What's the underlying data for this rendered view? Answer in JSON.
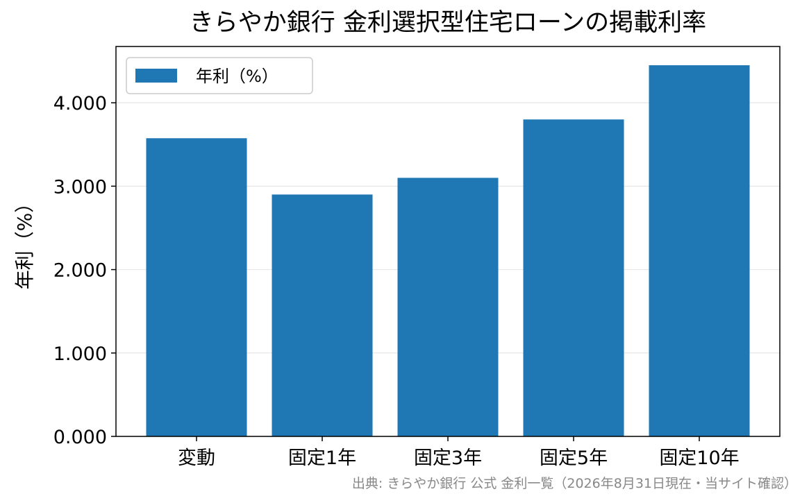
{
  "chart_data": {
    "type": "bar",
    "title": "きらやか銀行 金利選択型住宅ローンの掲載利率",
    "categories": [
      "変動",
      "固定1年",
      "固定3年",
      "固定5年",
      "固定10年"
    ],
    "series": [
      {
        "name": "年利（%）",
        "values": [
          3.575,
          2.9,
          3.1,
          3.8,
          4.45
        ],
        "color": "#1f77b4"
      }
    ],
    "xlabel": "",
    "ylabel": "年利（%）",
    "ylim": [
      0,
      4.675
    ],
    "yticks": [
      0,
      1,
      2,
      3,
      4
    ],
    "ytick_labels": [
      "0.000",
      "1.000",
      "2.000",
      "3.000",
      "4.000"
    ],
    "grid": "horizontal",
    "legend_position": "top-left",
    "source": "出典: きらやか銀行 公式 金利一覧（2026年8月31日現在・当サイト確認）"
  }
}
